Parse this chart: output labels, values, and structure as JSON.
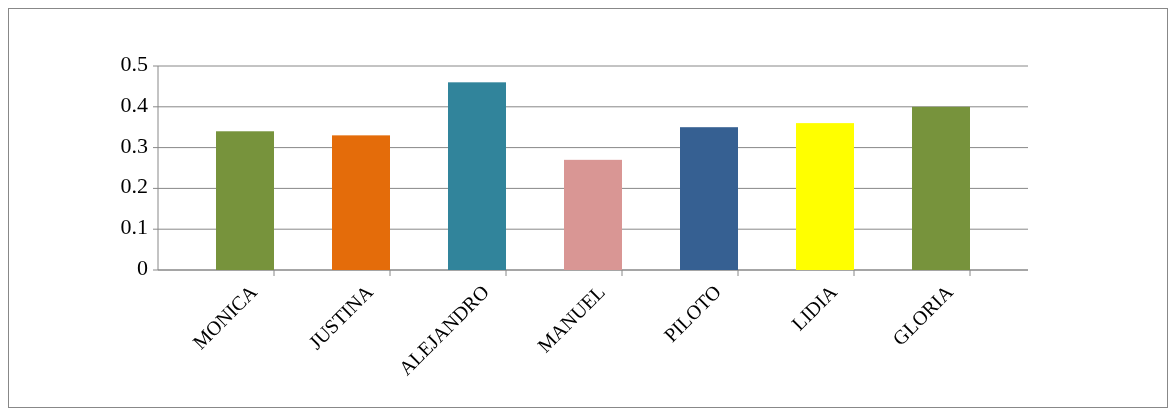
{
  "chart_data": {
    "type": "bar",
    "categories": [
      "MONICA",
      "JUSTINA",
      "ALEJANDRO",
      "MANUEL",
      "PILOTO",
      "LIDIA",
      "GLORIA"
    ],
    "values": [
      0.34,
      0.33,
      0.46,
      0.27,
      0.35,
      0.36,
      0.4
    ],
    "colors": [
      "#77933c",
      "#e46c0a",
      "#31849b",
      "#d99694",
      "#366092",
      "#ffff00",
      "#77933c"
    ],
    "ylim": [
      0,
      0.5
    ],
    "yticks": [
      0,
      0.1,
      0.2,
      0.3,
      0.4,
      0.5
    ],
    "grid": true
  }
}
